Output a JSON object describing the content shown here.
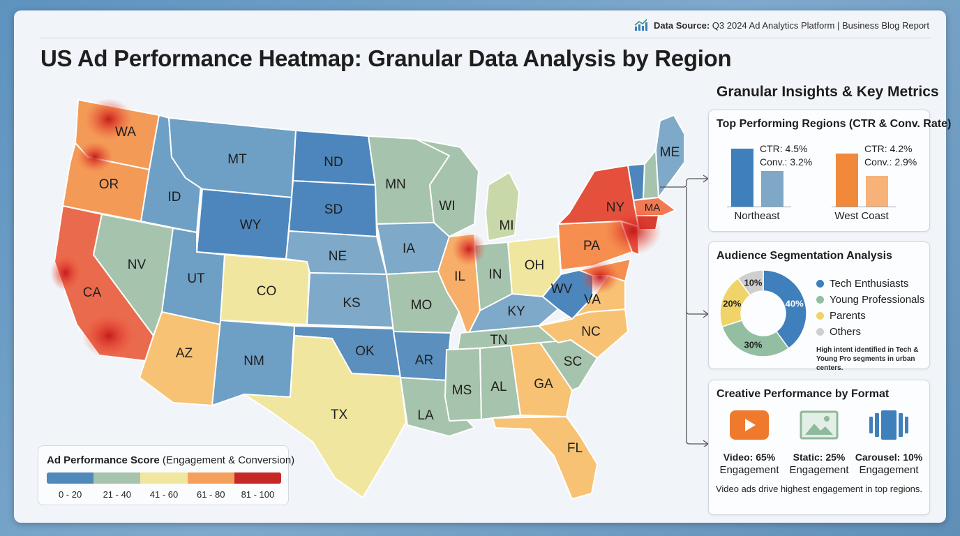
{
  "header": {
    "source_label": "Data Source:",
    "source_text": "Q3 2024 Ad Analytics Platform | Business Blog Report",
    "title": "US Ad Performance Heatmap: Granular Data Analysis by Region"
  },
  "colors": {
    "tier_0_20": "#4f89bb",
    "tier_21_40": "#a6c3ad",
    "tier_41_60": "#f1e6a0",
    "tier_61_80": "#f4a05c",
    "tier_81_100": "#c62828"
  },
  "map": {
    "states": [
      "WA",
      "OR",
      "CA",
      "ID",
      "NV",
      "MT",
      "WY",
      "UT",
      "AZ",
      "CO",
      "NM",
      "ND",
      "SD",
      "NE",
      "KS",
      "OK",
      "TX",
      "MN",
      "IA",
      "MO",
      "AR",
      "LA",
      "WI",
      "IL",
      "MI",
      "IN",
      "OH",
      "KY",
      "TN",
      "MS",
      "AL",
      "GA",
      "FL",
      "SC",
      "NC",
      "VA",
      "WV",
      "PA",
      "NY",
      "ME",
      "MA"
    ]
  },
  "legend": {
    "title_bold": "Ad Performance Score",
    "title_rest": " (Engagement & Conversion)",
    "ranges": [
      "0 - 20",
      "21 - 40",
      "41 - 60",
      "61 - 80",
      "81 - 100"
    ]
  },
  "insights": {
    "title": "Granular Insights & Key Metrics",
    "top_regions": {
      "title": "Top Performing Regions (CTR & Conv. Rate)",
      "regions": [
        {
          "name": "Northeast",
          "ctr_label": "CTR: 4.5%",
          "conv_label": "Conv.: 3.2%",
          "ctr": 4.5,
          "conv": 3.2
        },
        {
          "name": "West Coast",
          "ctr_label": "CTR: 4.2%",
          "conv_label": "Conv.: 2.9%",
          "ctr": 4.2,
          "conv": 2.9
        }
      ]
    },
    "audience": {
      "title": "Audience Segmentation Analysis",
      "segments": [
        {
          "name": "Tech Enthusiasts",
          "pct": 40,
          "label": "40%",
          "color": "#3f7fbc"
        },
        {
          "name": "Young Professionals",
          "pct": 30,
          "label": "30%",
          "color": "#94bea2"
        },
        {
          "name": "Parents",
          "pct": 20,
          "label": "20%",
          "color": "#f0d46a"
        },
        {
          "name": "Others",
          "pct": 10,
          "label": "10%",
          "color": "#cfcfcf"
        }
      ],
      "note": "High intent identified in Tech & Young Pro segments in urban centers."
    },
    "creative": {
      "title": "Creative Performance by Format",
      "formats": [
        {
          "label": "Video: 65%",
          "sub": "Engagement",
          "icon": "video-play-icon"
        },
        {
          "label": "Static: 25%",
          "sub": "Engagement",
          "icon": "image-icon"
        },
        {
          "label": "Carousel: 10%",
          "sub": "Engagement",
          "icon": "carousel-icon"
        }
      ],
      "note": "Video ads drive highest engagement in top regions."
    }
  }
}
